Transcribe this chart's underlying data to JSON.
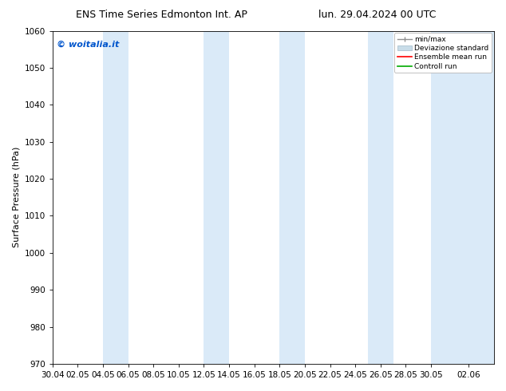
{
  "title_left": "ENS Time Series Edmonton Int. AP",
  "title_right": "lun. 29.04.2024 00 UTC",
  "ylabel": "Surface Pressure (hPa)",
  "watermark": "© woitalia.it",
  "watermark_color": "#0055cc",
  "ylim": [
    970,
    1060
  ],
  "yticks": [
    970,
    980,
    990,
    1000,
    1010,
    1020,
    1030,
    1040,
    1050,
    1060
  ],
  "xtick_labels": [
    "30.04",
    "02.05",
    "04.05",
    "06.05",
    "08.05",
    "10.05",
    "12.05",
    "14.05",
    "16.05",
    "18.05",
    "20.05",
    "22.05",
    "24.05",
    "26.05",
    "28.05",
    "30.05",
    "02.06"
  ],
  "bg_color": "#ffffff",
  "plot_bg_color": "#ffffff",
  "band_color": "#daeaf8",
  "legend_entries": [
    "min/max",
    "Deviazione standard",
    "Ensemble mean run",
    "Controll run"
  ],
  "legend_colors": [
    "#909090",
    "#c8dce8",
    "#ff0000",
    "#00aa00"
  ],
  "title_fontsize": 9,
  "axis_fontsize": 8,
  "tick_fontsize": 7.5
}
